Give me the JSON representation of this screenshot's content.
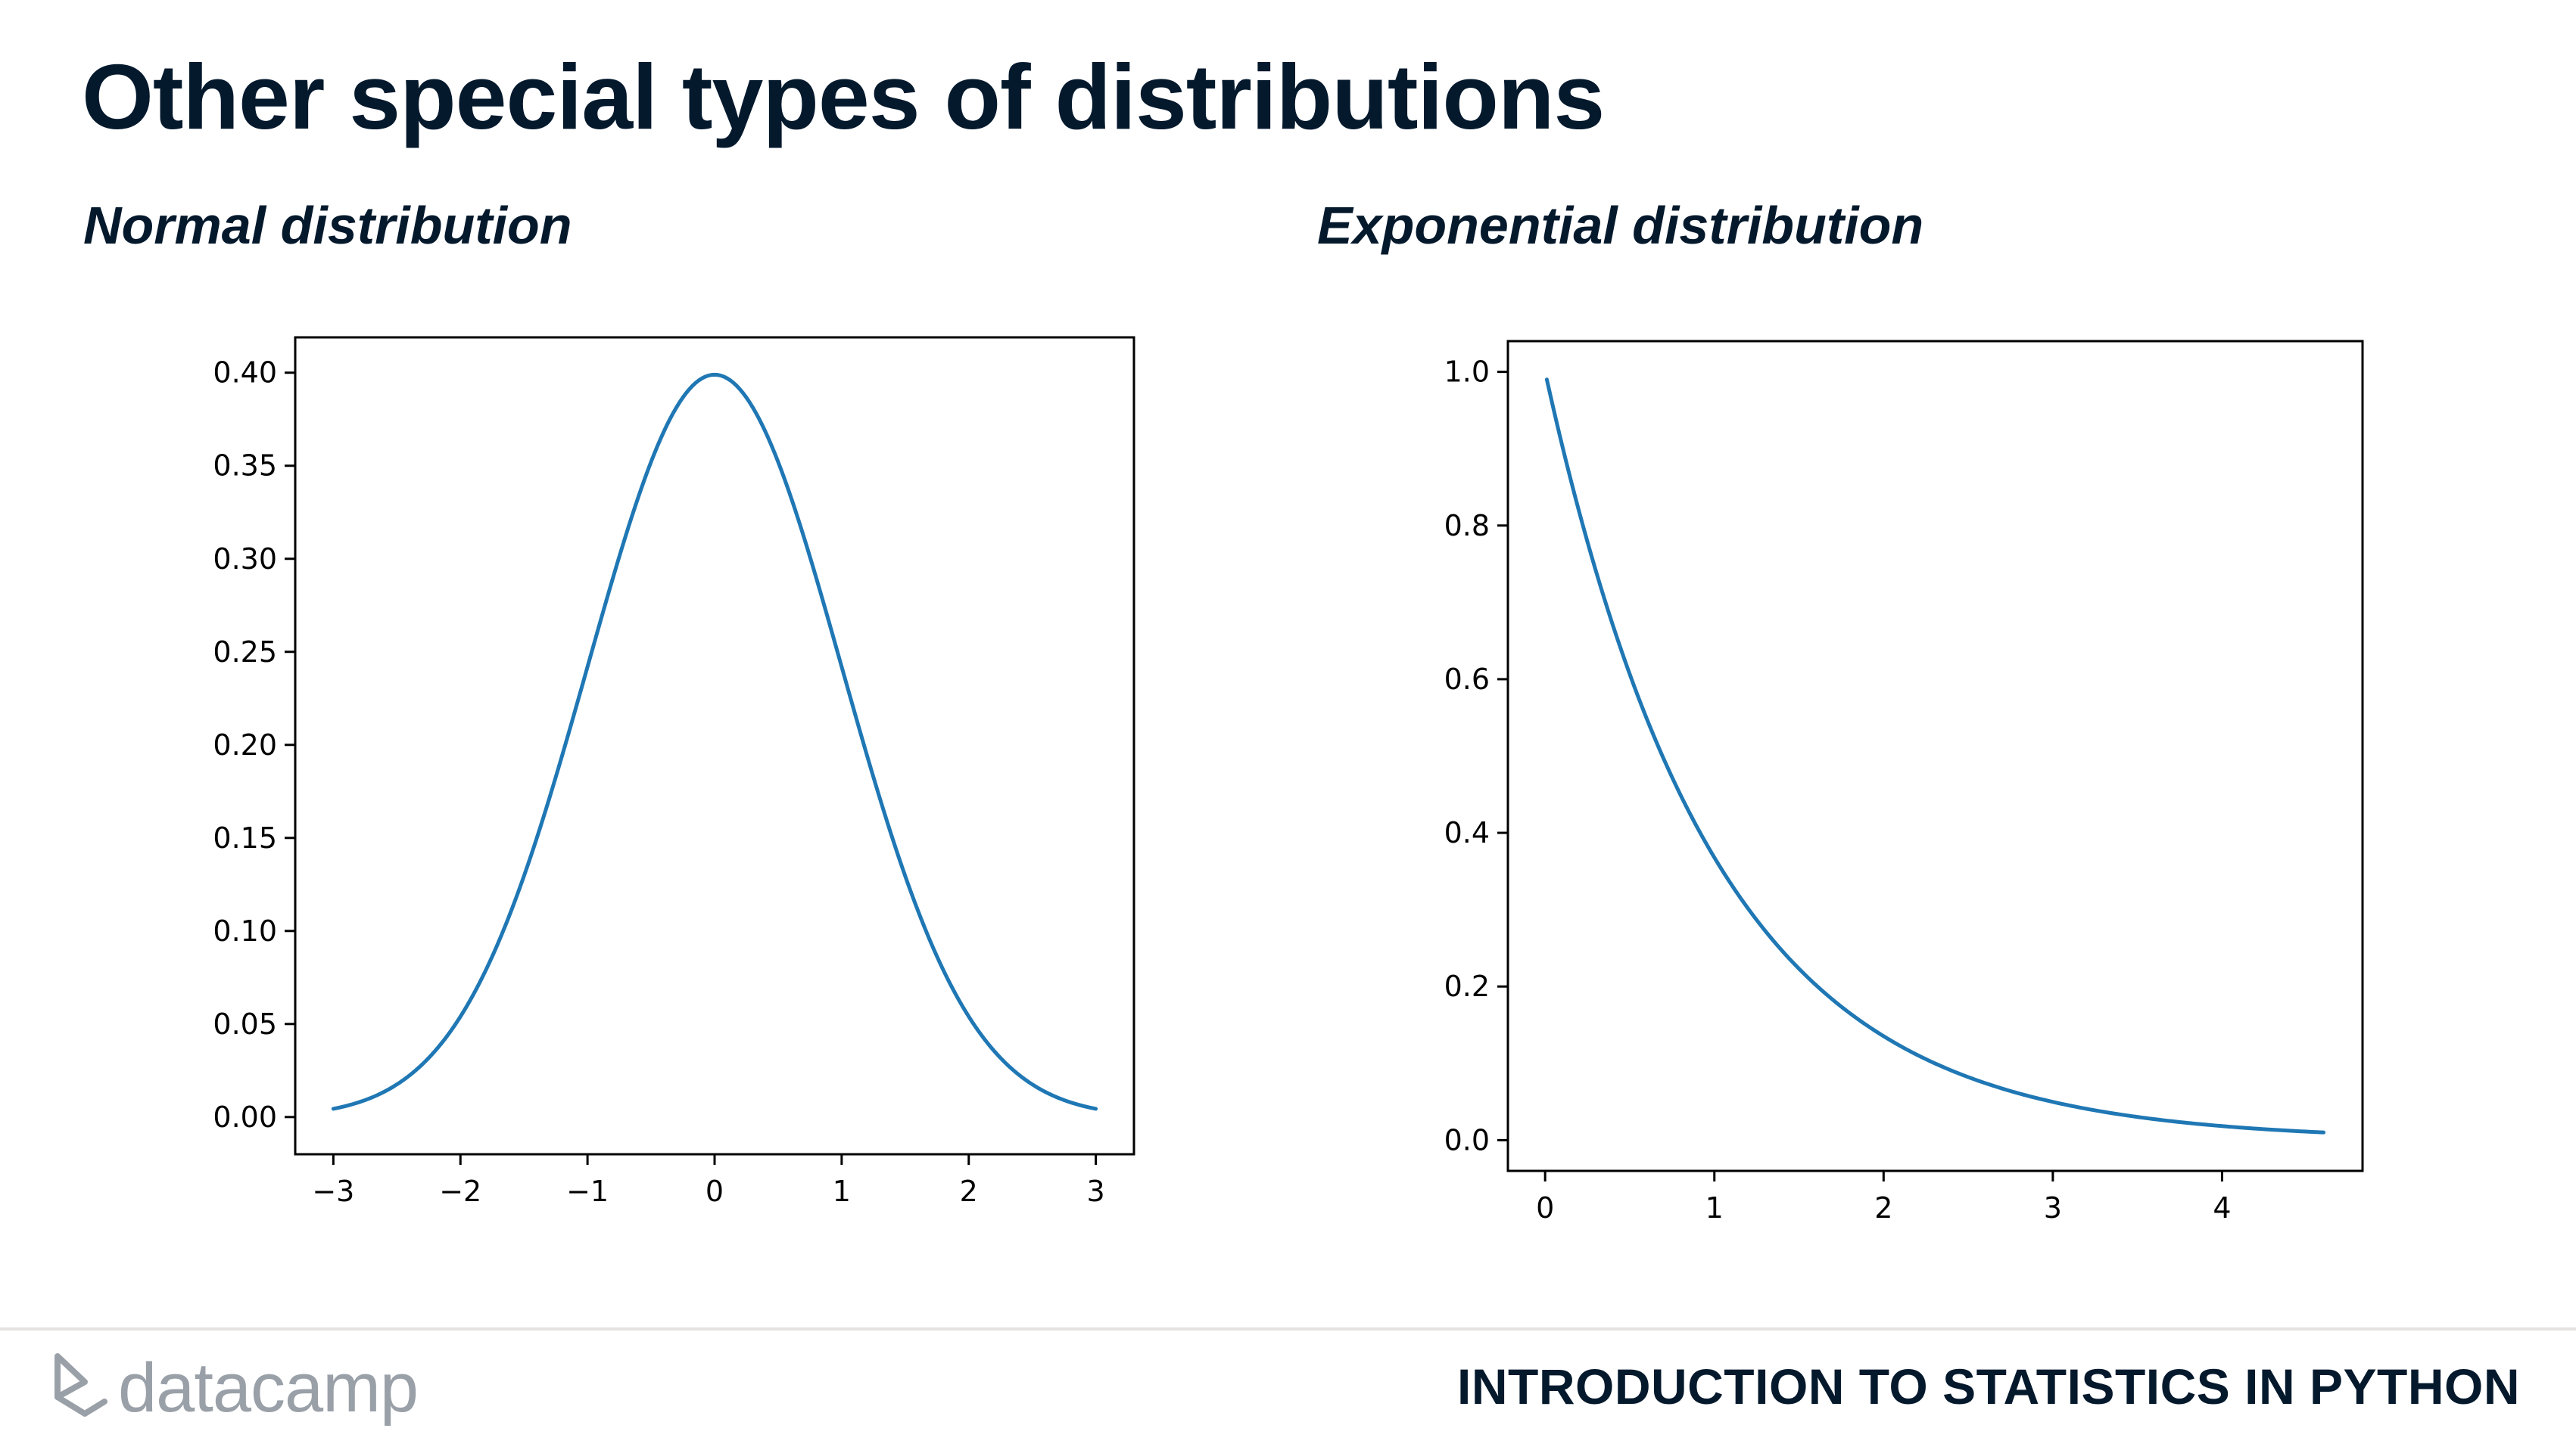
{
  "slide": {
    "title": "Other special types of distributions",
    "course": "INTRODUCTION TO STATISTICS IN PYTHON",
    "brand": "datacamp",
    "brand_icon": "datacamp-logo-icon",
    "subtitles": [
      "Normal distribution",
      "Exponential distribution"
    ]
  },
  "chart_data": [
    {
      "type": "line",
      "title": "Normal distribution",
      "function": "standard normal pdf",
      "mean": 0,
      "std": 1,
      "x": [
        -3,
        -2.5,
        -2,
        -1.5,
        -1,
        -0.5,
        0,
        0.5,
        1,
        1.5,
        2,
        2.5,
        3
      ],
      "y": [
        0.0044,
        0.0175,
        0.054,
        0.1295,
        0.242,
        0.3521,
        0.3989,
        0.3521,
        0.242,
        0.1295,
        0.054,
        0.0175,
        0.0044
      ],
      "xlim": [
        -3.3,
        3.3
      ],
      "ylim": [
        -0.02,
        0.419
      ],
      "xticks": [
        -3,
        -2,
        -1,
        0,
        1,
        2,
        3
      ],
      "xtick_labels": [
        "−3",
        "−2",
        "−1",
        "0",
        "1",
        "2",
        "3"
      ],
      "yticks": [
        0,
        0.05,
        0.1,
        0.15,
        0.2,
        0.25,
        0.3,
        0.35,
        0.4
      ],
      "ytick_labels": [
        "0.00",
        "0.05",
        "0.10",
        "0.15",
        "0.20",
        "0.25",
        "0.30",
        "0.35",
        "0.40"
      ],
      "line_color": "#1f77b4",
      "grid": false,
      "legend": false
    },
    {
      "type": "line",
      "title": "Exponential distribution",
      "function": "exponential pdf",
      "rate": 1,
      "x": [
        0.01,
        0.5,
        1,
        1.5,
        2,
        2.5,
        3,
        3.5,
        4,
        4.6
      ],
      "y": [
        0.99,
        0.6065,
        0.3679,
        0.2231,
        0.1353,
        0.0821,
        0.0498,
        0.0302,
        0.0183,
        0.01
      ],
      "xlim": [
        -0.22,
        4.83
      ],
      "ylim": [
        -0.04,
        1.04
      ],
      "xticks": [
        0,
        1,
        2,
        3,
        4
      ],
      "xtick_labels": [
        "0",
        "1",
        "2",
        "3",
        "4"
      ],
      "yticks": [
        0,
        0.2,
        0.4,
        0.6,
        0.8,
        1.0
      ],
      "ytick_labels": [
        "0.0",
        "0.2",
        "0.4",
        "0.6",
        "0.8",
        "1.0"
      ],
      "line_color": "#1f77b4",
      "grid": false,
      "legend": false
    }
  ]
}
